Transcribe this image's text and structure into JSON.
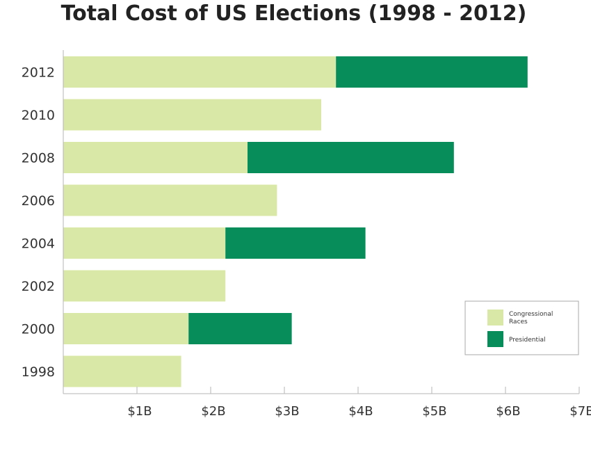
{
  "chart_data": {
    "type": "bar",
    "orientation": "horizontal",
    "stacked": true,
    "title": "Total Cost of US Elections (1998 - 2012)",
    "xlabel": "",
    "ylabel": "",
    "categories": [
      "2012",
      "2010",
      "2008",
      "2006",
      "2004",
      "2002",
      "2000",
      "1998"
    ],
    "series": [
      {
        "name": "Congressional Races",
        "color": "#d9e8a6",
        "values": [
          3.7,
          3.5,
          2.5,
          2.9,
          2.2,
          2.2,
          1.7,
          1.6
        ]
      },
      {
        "name": "Presidential",
        "color": "#078d5a",
        "values": [
          2.6,
          0,
          2.8,
          0,
          1.9,
          0,
          1.4,
          0
        ]
      }
    ],
    "xlim": [
      0,
      7
    ],
    "x_tick_values": [
      1,
      2,
      3,
      4,
      5,
      6,
      7
    ],
    "x_tick_labels": [
      "$1B",
      "$2B",
      "$3B",
      "$4B",
      "$5B",
      "$6B",
      "$7B"
    ],
    "grid": false,
    "legend_position": "right"
  }
}
